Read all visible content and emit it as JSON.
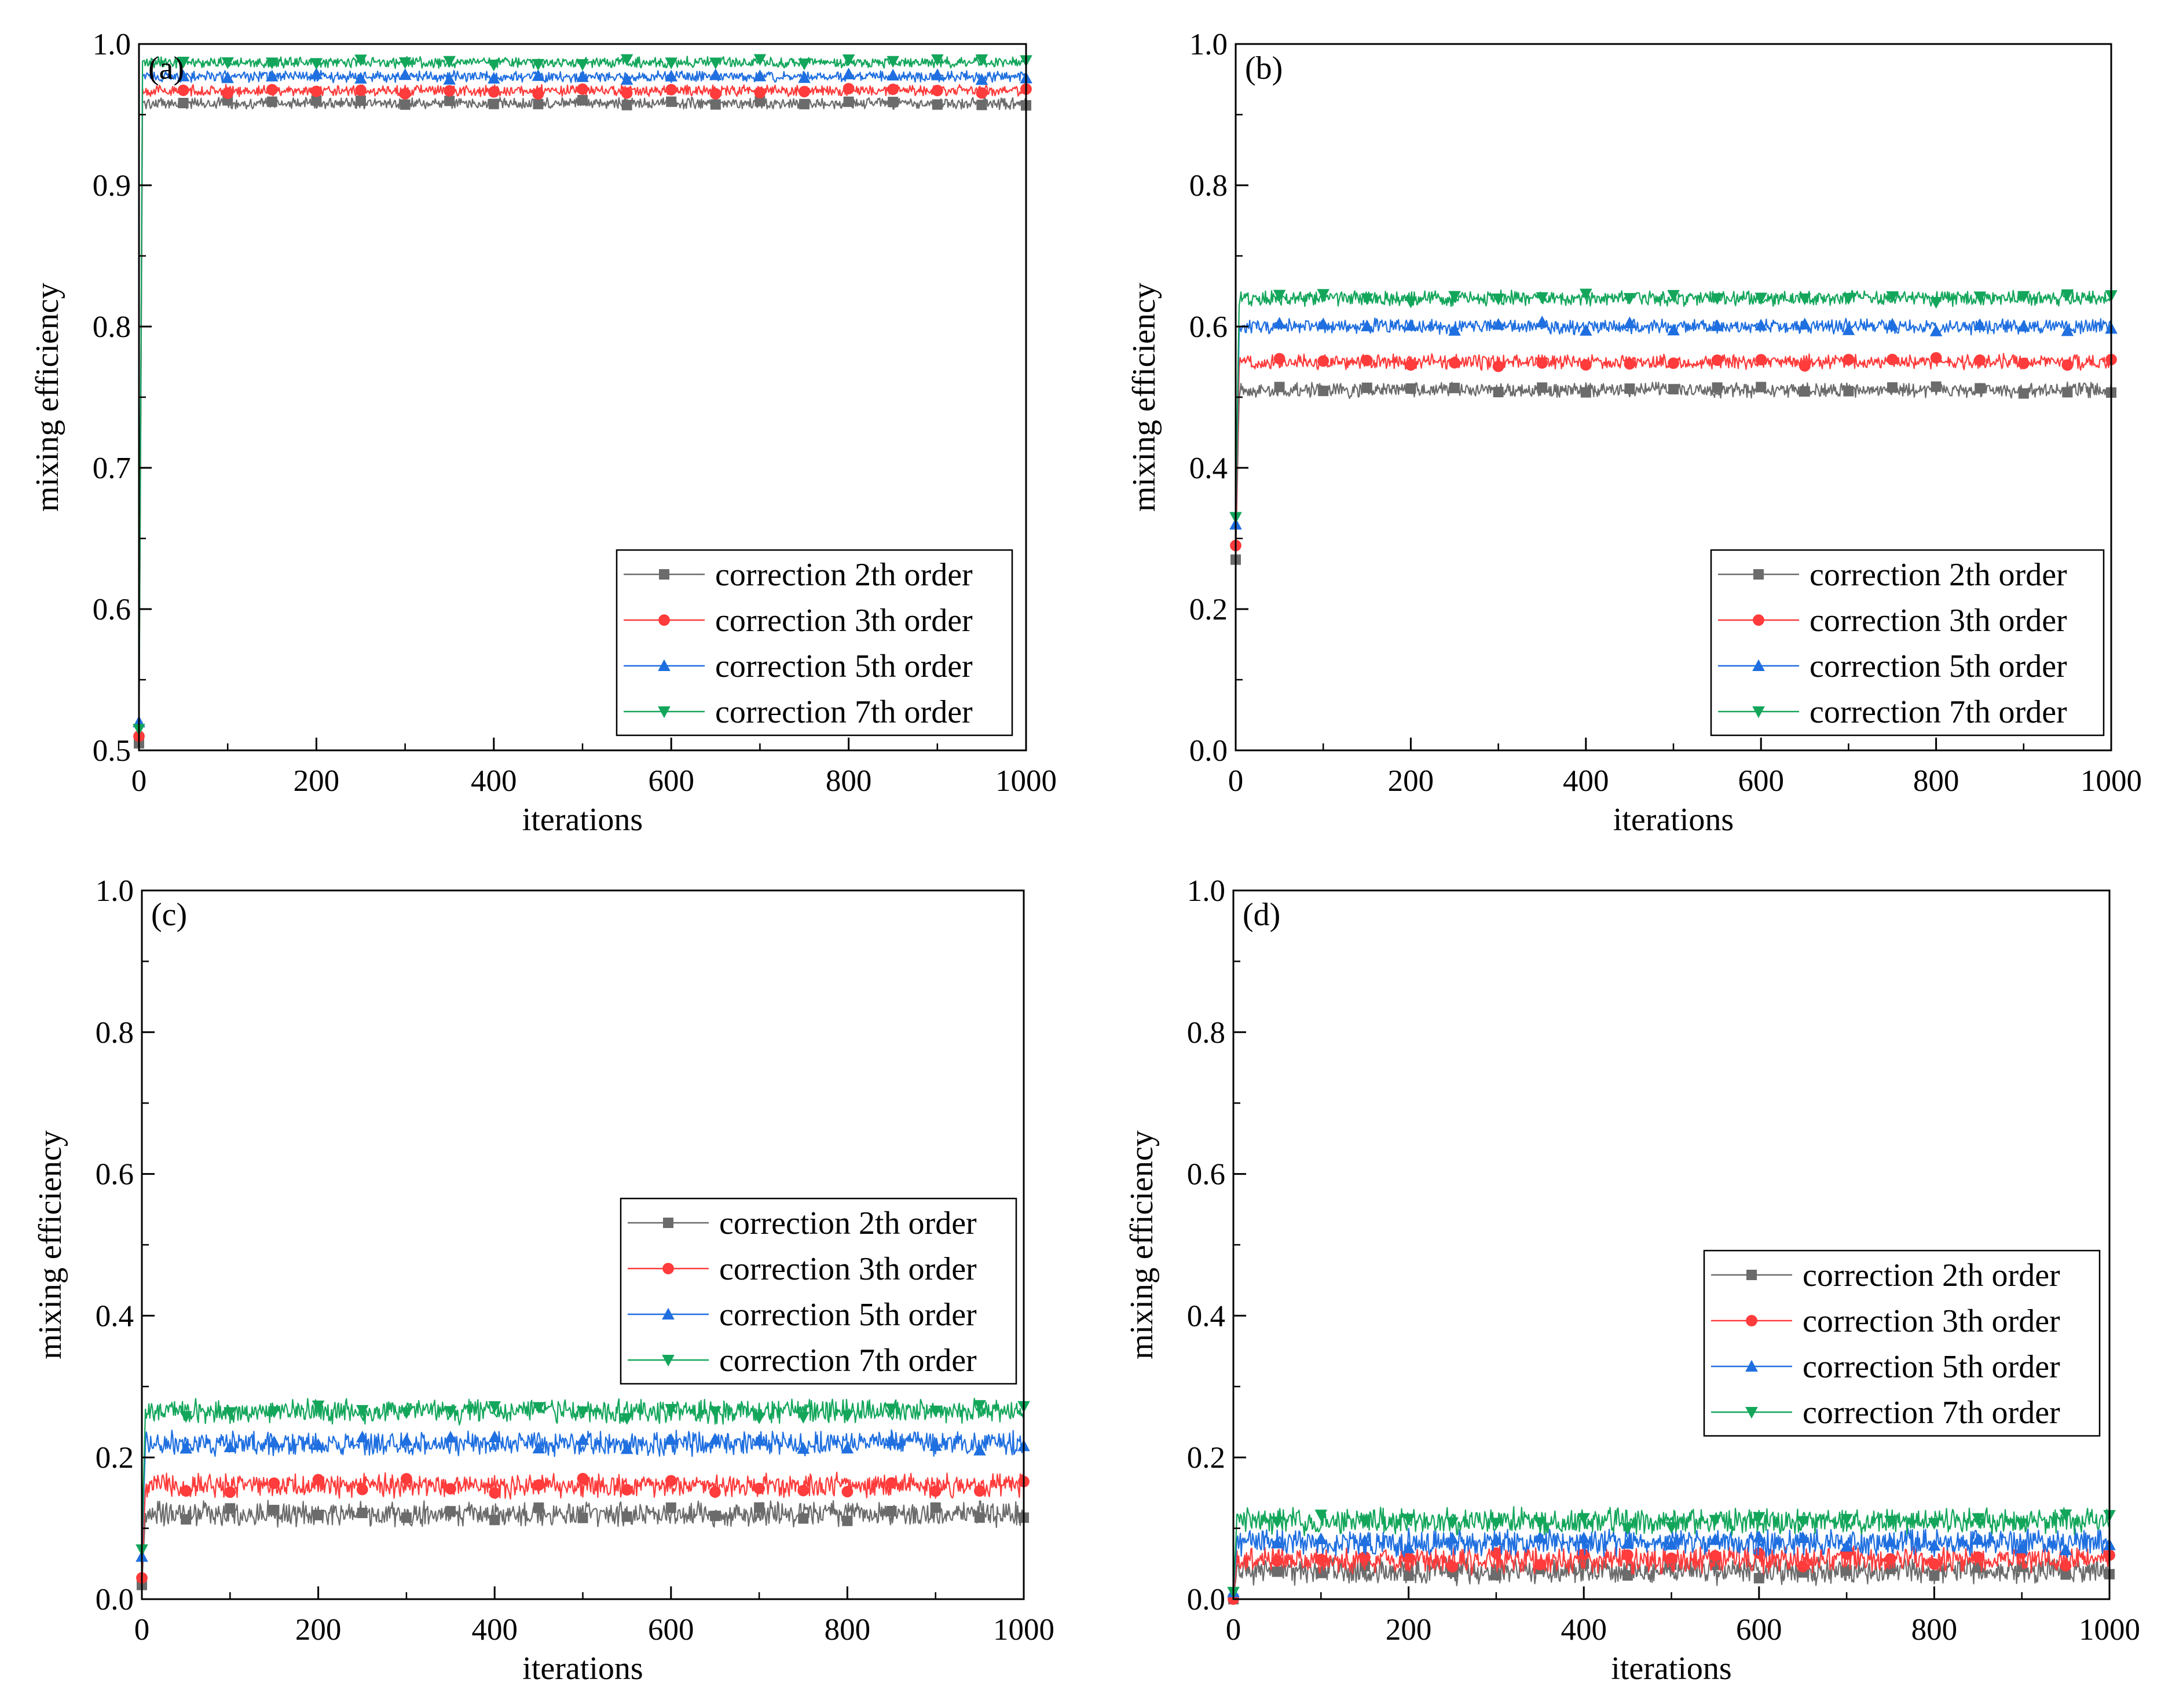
{
  "chart_data": [
    {
      "type": "line",
      "panel_label": "(a)",
      "xlabel": "iterations",
      "ylabel": "mixing efficiency",
      "xlim": [
        0,
        1000
      ],
      "ylim": [
        0.5,
        1.0
      ],
      "xticks": [
        "0",
        "200",
        "400",
        "600",
        "800",
        "1000"
      ],
      "yticks": [
        "0.5",
        "0.6",
        "0.7",
        "0.8",
        "0.9",
        "1.0"
      ],
      "legend_position": "bottom-right",
      "series": [
        {
          "name": "correction 2th order",
          "start": 0.505,
          "steady": 0.958,
          "noise": 0.003
        },
        {
          "name": "correction 3th order",
          "start": 0.51,
          "steady": 0.967,
          "noise": 0.003
        },
        {
          "name": "correction 5th order",
          "start": 0.52,
          "steady": 0.977,
          "noise": 0.003
        },
        {
          "name": "correction 7th order",
          "start": 0.515,
          "steady": 0.987,
          "noise": 0.003
        }
      ]
    },
    {
      "type": "line",
      "panel_label": "(b)",
      "xlabel": "iterations",
      "ylabel": "mixing efficiency",
      "xlim": [
        0,
        1000
      ],
      "ylim": [
        0.0,
        1.0
      ],
      "xticks": [
        "0",
        "200",
        "400",
        "600",
        "800",
        "1000"
      ],
      "yticks": [
        "0.0",
        "0.2",
        "0.4",
        "0.6",
        "0.8",
        "1.0"
      ],
      "legend_position": "bottom-right",
      "series": [
        {
          "name": "correction 2th order",
          "start": 0.27,
          "steady": 0.51,
          "noise": 0.008
        },
        {
          "name": "correction 3th order",
          "start": 0.29,
          "steady": 0.55,
          "noise": 0.008
        },
        {
          "name": "correction 5th order",
          "start": 0.32,
          "steady": 0.6,
          "noise": 0.008
        },
        {
          "name": "correction 7th order",
          "start": 0.33,
          "steady": 0.64,
          "noise": 0.008
        }
      ]
    },
    {
      "type": "line",
      "panel_label": "(c)",
      "xlabel": "iterations",
      "ylabel": "mixing efficiency",
      "xlim": [
        0,
        1000
      ],
      "ylim": [
        0.0,
        1.0
      ],
      "xticks": [
        "0",
        "200",
        "400",
        "600",
        "800",
        "1000"
      ],
      "yticks": [
        "0.0",
        "0.2",
        "0.4",
        "0.6",
        "0.8",
        "1.0"
      ],
      "legend_position": "center-right",
      "series": [
        {
          "name": "correction 2th order",
          "start": 0.02,
          "steady": 0.12,
          "noise": 0.013
        },
        {
          "name": "correction 3th order",
          "start": 0.03,
          "steady": 0.16,
          "noise": 0.013
        },
        {
          "name": "correction 5th order",
          "start": 0.06,
          "steady": 0.22,
          "noise": 0.013
        },
        {
          "name": "correction 7th order",
          "start": 0.07,
          "steady": 0.265,
          "noise": 0.013
        }
      ]
    },
    {
      "type": "line",
      "panel_label": "(d)",
      "xlabel": "iterations",
      "ylabel": "mixing efficiency",
      "xlim": [
        0,
        1000
      ],
      "ylim": [
        0.0,
        1.0
      ],
      "xticks": [
        "0",
        "200",
        "400",
        "600",
        "800",
        "1000"
      ],
      "yticks": [
        "0.0",
        "0.2",
        "0.4",
        "0.6",
        "0.8",
        "1.0"
      ],
      "legend_position": "center-right",
      "series": [
        {
          "name": "correction 2th order",
          "start": 0.0,
          "steady": 0.04,
          "noise": 0.014
        },
        {
          "name": "correction 3th order",
          "start": 0.0,
          "steady": 0.055,
          "noise": 0.014
        },
        {
          "name": "correction 5th order",
          "start": 0.01,
          "steady": 0.08,
          "noise": 0.014
        },
        {
          "name": "correction 7th order",
          "start": 0.01,
          "steady": 0.11,
          "noise": 0.014
        }
      ]
    }
  ],
  "colors": {
    "series": [
      "#6b6b6b",
      "#ff3b3b",
      "#1f6fe0",
      "#13a65b"
    ],
    "axis": "#000000"
  },
  "markers": [
    "square",
    "circle",
    "triangle-up",
    "triangle-down"
  ]
}
